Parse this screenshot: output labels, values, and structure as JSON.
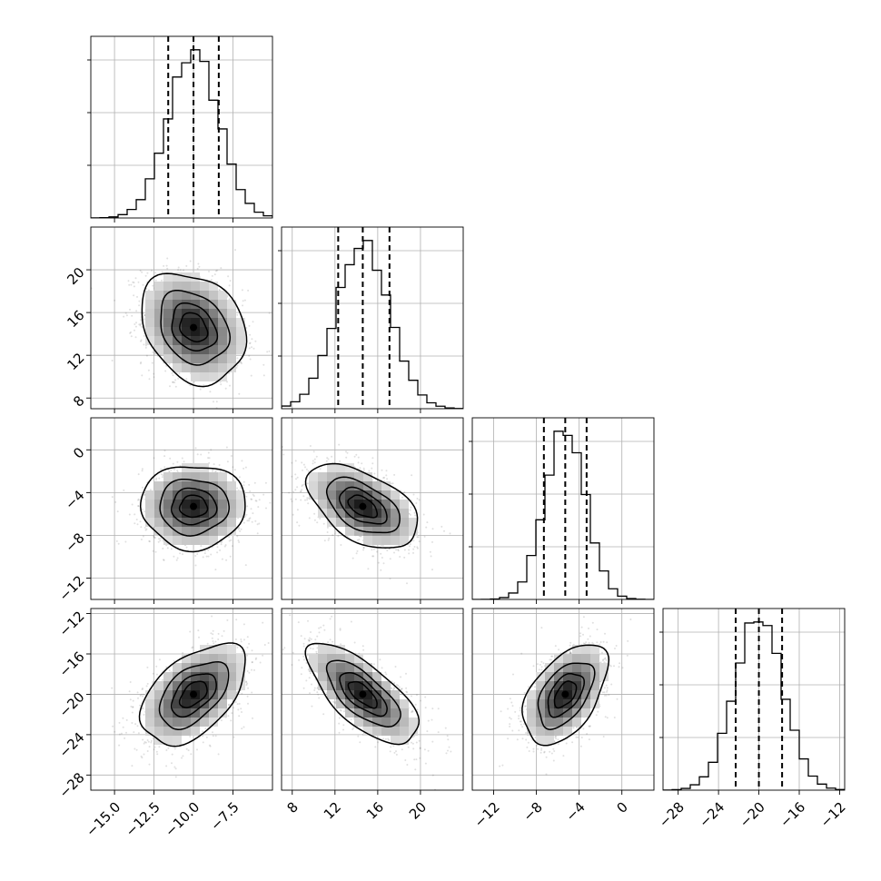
{
  "chart_data": {
    "type": "corner",
    "parameters": [
      {
        "index": 0,
        "mean": -10.0,
        "sd": 1.6,
        "range": [
          -16.5,
          -5.0
        ],
        "quantiles": [
          -11.6,
          -10.0,
          -8.4
        ],
        "ticks": [
          -15.0,
          -12.5,
          -10.0,
          -7.5
        ],
        "tick_labels": [
          "−15.0",
          "−12.5",
          "−10.0",
          "−7.5"
        ]
      },
      {
        "index": 1,
        "mean": 14.6,
        "sd": 2.5,
        "range": [
          7.0,
          24.0
        ],
        "quantiles": [
          12.3,
          14.6,
          17.1
        ],
        "ticks": [
          8,
          12,
          16,
          20
        ],
        "tick_labels": [
          "8",
          "12",
          "16",
          "20"
        ]
      },
      {
        "index": 2,
        "mean": -5.3,
        "sd": 1.9,
        "range": [
          -14.0,
          3.0
        ],
        "quantiles": [
          -7.3,
          -5.3,
          -3.3
        ],
        "ticks": [
          -12,
          -8,
          -4,
          0
        ],
        "tick_labels": [
          "−12",
          "−8",
          "−4",
          "0"
        ]
      },
      {
        "index": 3,
        "mean": -20.0,
        "sd": 2.4,
        "range": [
          -29.5,
          -11.5
        ],
        "quantiles": [
          -22.3,
          -20.0,
          -17.7
        ],
        "ticks": [
          -28,
          -24,
          -20,
          -16,
          -12
        ],
        "tick_labels": [
          "−28",
          "−24",
          "−20",
          "−16",
          "−12"
        ]
      }
    ],
    "correlations": [
      {
        "pair": [
          0,
          1
        ],
        "rho": -0.25
      },
      {
        "pair": [
          0,
          2
        ],
        "rho": 0.0
      },
      {
        "pair": [
          1,
          2
        ],
        "rho": -0.5
      },
      {
        "pair": [
          0,
          3
        ],
        "rho": 0.5
      },
      {
        "pair": [
          1,
          3
        ],
        "rho": -0.7
      },
      {
        "pair": [
          2,
          3
        ],
        "rho": 0.5
      }
    ],
    "diagonal": "1-D histogram with dashed lines at the 16th, 50th and 84th percentiles",
    "off_diagonal": "2-D histogram with density contours and scatter points",
    "contour_levels_sigma": [
      0.5,
      1.0,
      1.5,
      2.0
    ],
    "grid": true,
    "title": "",
    "axis_labels": []
  }
}
